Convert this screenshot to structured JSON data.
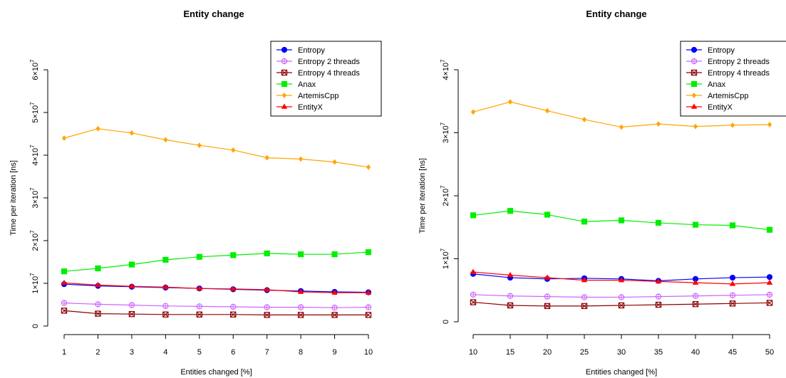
{
  "chart_data": [
    {
      "type": "line",
      "title": "Entity change",
      "xlabel": "Entities changed [%]",
      "ylabel": "Time per iteration [ns]",
      "x": [
        1,
        2,
        3,
        4,
        5,
        6,
        7,
        8,
        9,
        10
      ],
      "xticks": [
        "1",
        "2",
        "3",
        "4",
        "5",
        "6",
        "7",
        "8",
        "9",
        "10"
      ],
      "xlim": [
        1,
        10
      ],
      "ylim": [
        0,
        60000000
      ],
      "yticks": [
        {
          "value": 0,
          "mant": "0",
          "exp": ""
        },
        {
          "value": 10000000,
          "mant": "1",
          "exp": "7"
        },
        {
          "value": 20000000,
          "mant": "2",
          "exp": "7"
        },
        {
          "value": 30000000,
          "mant": "3",
          "exp": "7"
        },
        {
          "value": 40000000,
          "mant": "4",
          "exp": "7"
        },
        {
          "value": 50000000,
          "mant": "5",
          "exp": "7"
        },
        {
          "value": 60000000,
          "mant": "6",
          "exp": "7"
        }
      ],
      "legend_position": "top-right",
      "grid": false,
      "series": [
        {
          "name": "Entropy",
          "color": "#0000ff",
          "marker": "circle",
          "values": [
            9800000,
            9400000,
            9200000,
            9000000,
            8800000,
            8600000,
            8400000,
            8200000,
            8000000,
            7900000
          ]
        },
        {
          "name": "Entropy 2 threads",
          "color": "#cc66ff",
          "marker": "circle-plus",
          "values": [
            5400000,
            5100000,
            4900000,
            4700000,
            4600000,
            4500000,
            4400000,
            4400000,
            4300000,
            4400000
          ]
        },
        {
          "name": "Entropy 4 threads",
          "color": "#8b0000",
          "marker": "square-x",
          "values": [
            3600000,
            2900000,
            2800000,
            2700000,
            2700000,
            2700000,
            2600000,
            2600000,
            2600000,
            2600000
          ]
        },
        {
          "name": "Anax",
          "color": "#00ee00",
          "marker": "square",
          "values": [
            12800000,
            13500000,
            14400000,
            15500000,
            16200000,
            16600000,
            17000000,
            16800000,
            16800000,
            17300000
          ]
        },
        {
          "name": "ArtemisCpp",
          "color": "#ffa500",
          "marker": "diamond",
          "values": [
            44000000,
            46200000,
            45200000,
            43600000,
            42300000,
            41200000,
            39400000,
            39100000,
            38400000,
            37200000
          ]
        },
        {
          "name": "EntityX",
          "color": "#ff0000",
          "marker": "triangle",
          "values": [
            10100000,
            9600000,
            9300000,
            9100000,
            8800000,
            8700000,
            8500000,
            8000000,
            7800000,
            7800000
          ]
        }
      ]
    },
    {
      "type": "line",
      "title": "Entity change",
      "xlabel": "Entities changed [%]",
      "ylabel": "Time per iteration [ns]",
      "x": [
        10,
        15,
        20,
        25,
        30,
        35,
        40,
        45,
        50
      ],
      "xticks": [
        "10",
        "15",
        "20",
        "25",
        "30",
        "35",
        "40",
        "45",
        "50"
      ],
      "xlim": [
        10,
        50
      ],
      "ylim": [
        0,
        40000000
      ],
      "yticks": [
        {
          "value": 0,
          "mant": "0",
          "exp": ""
        },
        {
          "value": 10000000,
          "mant": "1",
          "exp": "7"
        },
        {
          "value": 20000000,
          "mant": "2",
          "exp": "7"
        },
        {
          "value": 30000000,
          "mant": "3",
          "exp": "7"
        },
        {
          "value": 40000000,
          "mant": "4",
          "exp": "7"
        }
      ],
      "legend_position": "top-right",
      "grid": false,
      "series": [
        {
          "name": "Entropy",
          "color": "#0000ff",
          "marker": "circle",
          "values": [
            7600000,
            7000000,
            6800000,
            6900000,
            6800000,
            6500000,
            6800000,
            7000000,
            7100000
          ]
        },
        {
          "name": "Entropy 2 threads",
          "color": "#cc66ff",
          "marker": "circle-plus",
          "values": [
            4300000,
            4100000,
            4000000,
            3900000,
            3900000,
            4000000,
            4100000,
            4200000,
            4300000
          ]
        },
        {
          "name": "Entropy 4 threads",
          "color": "#8b0000",
          "marker": "square-x",
          "values": [
            3100000,
            2600000,
            2500000,
            2500000,
            2600000,
            2700000,
            2800000,
            2900000,
            3000000
          ]
        },
        {
          "name": "Anax",
          "color": "#00ee00",
          "marker": "square",
          "values": [
            16900000,
            17600000,
            17000000,
            15900000,
            16100000,
            15700000,
            15400000,
            15300000,
            14600000
          ]
        },
        {
          "name": "ArtemisCpp",
          "color": "#ffa500",
          "marker": "diamond",
          "values": [
            33300000,
            34900000,
            33500000,
            32100000,
            30900000,
            31400000,
            31000000,
            31200000,
            31300000
          ]
        },
        {
          "name": "EntityX",
          "color": "#ff0000",
          "marker": "triangle",
          "values": [
            7900000,
            7400000,
            7000000,
            6600000,
            6600000,
            6400000,
            6200000,
            6000000,
            6200000
          ]
        }
      ]
    }
  ]
}
